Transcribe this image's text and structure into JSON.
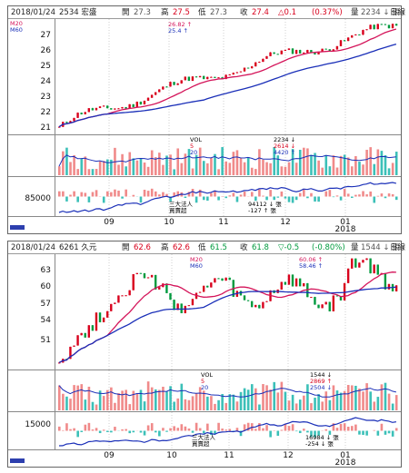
{
  "panels": [
    {
      "header": {
        "date": "2018/01/24",
        "symbol": "2534 宏盛",
        "open_label": "開",
        "open": "27.3",
        "high_label": "高",
        "high": "27.5",
        "low_label": "低",
        "low": "27.3",
        "close_label": "收",
        "close": "27.4",
        "change": "△0.1",
        "pct": "(0.37%)",
        "vol_label": "量",
        "vol": "2234 ↓ 張",
        "period": "日線"
      },
      "ma": {
        "m20": "M20",
        "m60": "M60",
        "m20_val": "26.82 ↑",
        "m60_val": "25.4 ↑"
      },
      "y_ticks": [
        "27",
        "26",
        "25",
        "24",
        "23",
        "22",
        "21"
      ],
      "vol_legend": [
        "VOL",
        "5",
        "20"
      ],
      "vol_values": [
        "2234 ↓",
        "2614 ↓",
        "4420 ↑"
      ],
      "inst_tick": "85000",
      "inst_legend": [
        "三大法人",
        "買賣超"
      ],
      "inst_values": [
        "94112 ↓ 張",
        "-127 ↑ 張"
      ],
      "x_ticks": [
        "09",
        "10",
        "11",
        "12",
        "01"
      ],
      "year_label": "2018"
    },
    {
      "header": {
        "date": "2018/01/24",
        "symbol": "6261 久元",
        "open_label": "開",
        "open": "62.6",
        "high_label": "高",
        "high": "62.6",
        "low_label": "低",
        "low": "61.5",
        "close_label": "收",
        "close": "61.8",
        "change": "▽-0.5",
        "pct": "(-0.80%)",
        "vol_label": "量",
        "vol": "1544 ↓ 張",
        "period": "日線"
      },
      "ma": {
        "m20": "M20",
        "m60": "M60",
        "m20_val": "60.06 ↑",
        "m60_val": "58.46 ↑"
      },
      "y_ticks": [
        "63",
        "60",
        "57",
        "54",
        "51"
      ],
      "vol_legend": [
        "VOL",
        "5",
        "20"
      ],
      "vol_values": [
        "1544 ↓",
        "2869 ↑",
        "2504 ↓"
      ],
      "inst_tick": "15000",
      "inst_legend": [
        "三大法人",
        "買賣超"
      ],
      "inst_values": [
        "16984 ↓ 張",
        "-254 ↓ 張"
      ],
      "x_ticks": [
        "09",
        "10",
        "11",
        "12",
        "01"
      ],
      "year_label": "2018"
    }
  ],
  "colors": {
    "up": "#d8001c",
    "down": "#009a3e",
    "ma20": "#d4145a",
    "ma60": "#1a2fb8",
    "vol_up": "#f08a8a",
    "vol_down": "#3cc0b8",
    "inst_line": "#1a2fb8"
  }
}
